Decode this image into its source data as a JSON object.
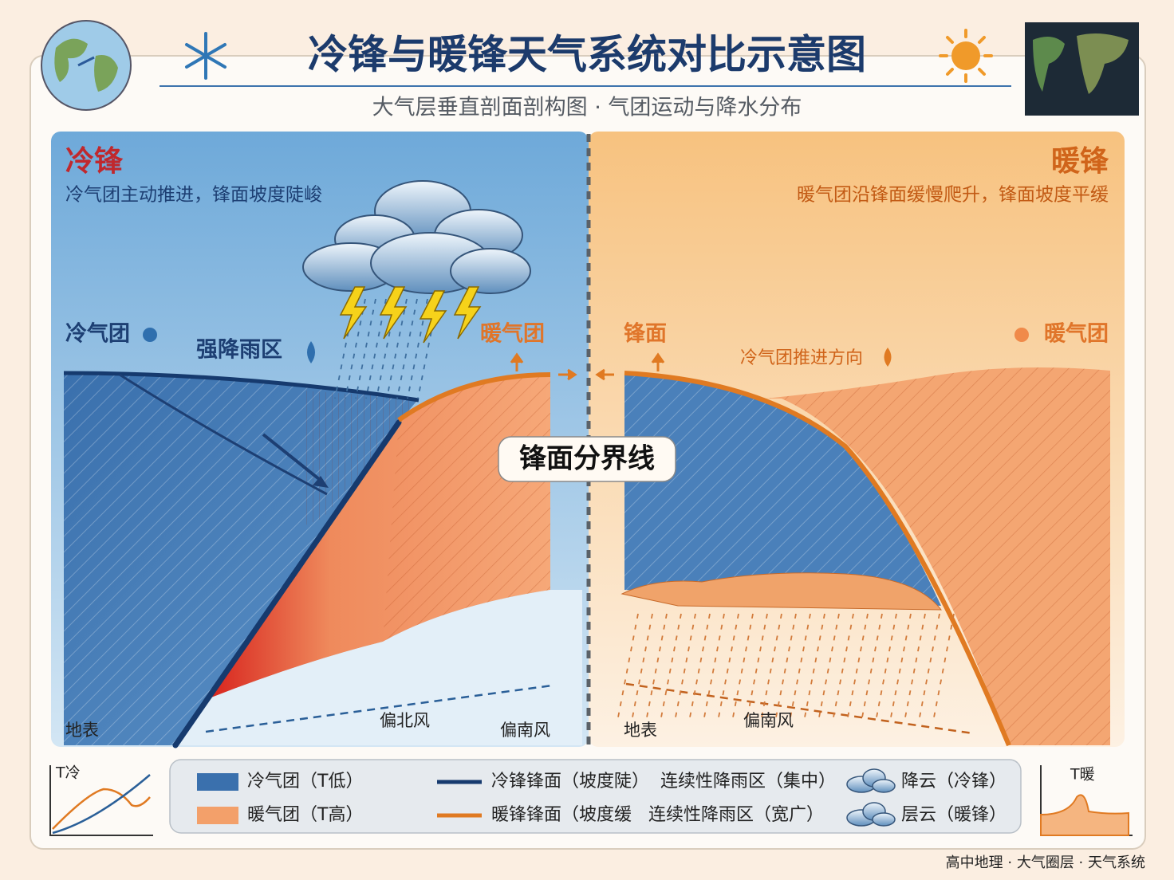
{
  "header": {
    "title": "冷锋与暖锋天气系统对比示意图",
    "subtitle": "大气层垂直剖面剖构图 · 气团运动与降水分布"
  },
  "cold_front": {
    "heading": "冷锋",
    "description": "冷气团主动推进，锋面坡度陡峻",
    "labels": {
      "cold_air": "冷气团",
      "heavy_rain": "强降雨区",
      "warm_air": "暖气团",
      "ground": "地表",
      "north_wind": "偏北风",
      "south_wind": "偏南风"
    }
  },
  "warm_front": {
    "heading": "暖锋",
    "description": "暖气团沿锋面缓慢爬升，锋面坡度平缓",
    "labels": {
      "front": "锋面",
      "cold_push": "冷气团推进方向",
      "warm_air": "暖气团",
      "ground": "地表",
      "south_wind": "偏南风"
    }
  },
  "divider_label": "锋面分界线",
  "legend": {
    "items": [
      {
        "label": "冷气团（T低）"
      },
      {
        "label": "冷锋锋面（坡度陡）"
      },
      {
        "label": "连续性降雨区（集中）"
      },
      {
        "label": "降云（冷锋）"
      },
      {
        "label": "暖气团（T高）"
      },
      {
        "label": "暖锋锋面（坡度缓"
      },
      {
        "label": "连续性降雨区（宽广）"
      },
      {
        "label": "层云（暖锋）"
      }
    ]
  },
  "mini_charts": {
    "left_label": "T冷",
    "right_label": "T暖"
  },
  "footer": "高中地理 · 大气圈层 · 天气系统"
}
